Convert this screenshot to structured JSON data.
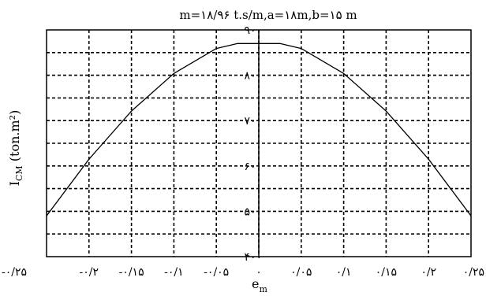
{
  "chart_data": {
    "type": "line",
    "title": "m=۱۸/۹۶ t.s/m,a=۱۸m,b=۱۵ m",
    "xlabel": "e_m",
    "xlabel_main": "e",
    "xlabel_sub": "m",
    "ylabel": "I_CM (ton.m²)",
    "ylabel_main": "I",
    "ylabel_sub": "CM",
    "ylabel_rest": " (ton.m²)",
    "xlim": [
      -0.25,
      0.25
    ],
    "ylim": [
      400,
      900
    ],
    "grid": true,
    "x_ticks": [
      -0.25,
      -0.2,
      -0.15,
      -0.1,
      -0.05,
      0,
      0.05,
      0.1,
      0.15,
      0.2,
      0.25
    ],
    "x_tick_labels": [
      "-۰/۲۵",
      "-۰/۲",
      "-۰/۱۵",
      "-۰/۱",
      "-۰/۰۵",
      "۰",
      "۰/۰۵",
      "۰/۱",
      "۰/۱۵",
      "۰/۲",
      "۰/۲۵"
    ],
    "y_ticks": [
      400,
      500,
      600,
      700,
      800,
      900
    ],
    "y_tick_labels": [
      "۴۰۰",
      "۵۰۰",
      "۶۰۰",
      "۷۰۰",
      "۸۰۰",
      "۹۰۰"
    ],
    "series": [
      {
        "color": "#000000",
        "x": [
          -0.25,
          -0.2,
          -0.15,
          -0.1,
          -0.05,
          -0.025,
          0,
          0.025,
          0.05,
          0.1,
          0.15,
          0.2,
          0.25
        ],
        "y": [
          490,
          615,
          721,
          804,
          859,
          870,
          870,
          870,
          859,
          804,
          721,
          615,
          490
        ]
      }
    ]
  }
}
